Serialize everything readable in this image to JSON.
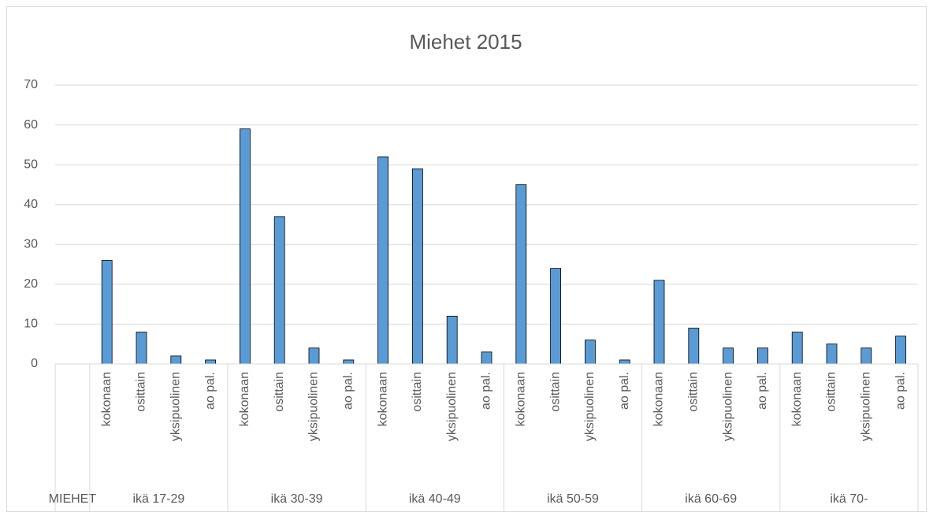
{
  "chart_data": {
    "type": "bar",
    "title": "Miehet 2015",
    "color": "#5b9bd5",
    "ylim": [
      0,
      70
    ],
    "yticks": [
      0,
      10,
      20,
      30,
      40,
      50,
      60,
      70
    ],
    "grid": true,
    "groups": [
      {
        "name": "MIEHET",
        "categories": [
          null
        ],
        "values": [
          null
        ]
      },
      {
        "name": "ikä 17-29",
        "categories": [
          "kokonaan",
          "osittain",
          "yksipuolinen",
          "ao pal."
        ],
        "values": [
          26,
          8,
          2,
          1
        ]
      },
      {
        "name": "ikä 30-39",
        "categories": [
          "kokonaan",
          "osittain",
          "yksipuolinen",
          "ao pal."
        ],
        "values": [
          59,
          37,
          4,
          1
        ]
      },
      {
        "name": "ikä 40-49",
        "categories": [
          "kokonaan",
          "osittain",
          "yksipuolinen",
          "ao pal."
        ],
        "values": [
          52,
          49,
          12,
          3
        ]
      },
      {
        "name": "ikä 50-59",
        "categories": [
          "kokonaan",
          "osittain",
          "yksipuolinen",
          "ao pal."
        ],
        "values": [
          45,
          24,
          6,
          1
        ]
      },
      {
        "name": "ikä 60-69",
        "categories": [
          "kokonaan",
          "osittain",
          "yksipuolinen",
          "ao pal."
        ],
        "values": [
          21,
          9,
          4,
          4
        ]
      },
      {
        "name": "ikä 70-",
        "categories": [
          "kokonaan",
          "osittain",
          "yksipuolinen",
          "ao pal."
        ],
        "values": [
          8,
          5,
          4,
          7
        ]
      }
    ]
  }
}
